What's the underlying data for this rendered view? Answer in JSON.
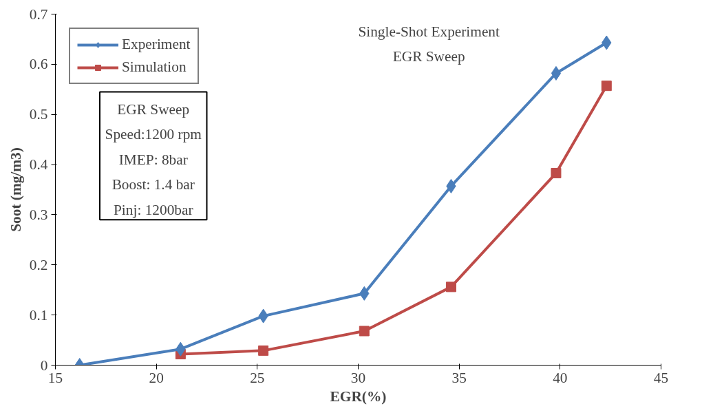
{
  "chart_data": {
    "type": "line",
    "xlabel": "EGR(%)",
    "ylabel": "Soot (mg/m3)",
    "xlim": [
      15,
      45
    ],
    "xticks": [
      15,
      20,
      25,
      30,
      35,
      40,
      45
    ],
    "ylim": [
      0,
      0.7
    ],
    "yticks": [
      0,
      0.1,
      0.2,
      0.3,
      0.4,
      0.5,
      0.6,
      0.7
    ],
    "grid": false,
    "legend": "top left",
    "annotations": [
      "Single-Shot Experiment",
      "EGR Sweep",
      "EGR Sweep",
      "Speed:1200 rpm",
      "IMEP: 8bar",
      "Boost: 1.4 bar",
      "Pinj: 1200bar"
    ],
    "series": [
      {
        "name": "Experiment",
        "color": "#4a7ebb",
        "marker": "diamond",
        "x": [
          16.2,
          21.2,
          25.3,
          30.3,
          34.6,
          39.8,
          42.3
        ],
        "values": [
          0.0,
          0.032,
          0.098,
          0.143,
          0.357,
          0.582,
          0.643
        ]
      },
      {
        "name": "Simulation",
        "color": "#be4b48",
        "marker": "square",
        "x": [
          21.2,
          25.3,
          30.3,
          34.6,
          39.8,
          42.3
        ],
        "values": [
          0.022,
          0.029,
          0.068,
          0.156,
          0.383,
          0.557
        ]
      }
    ]
  }
}
